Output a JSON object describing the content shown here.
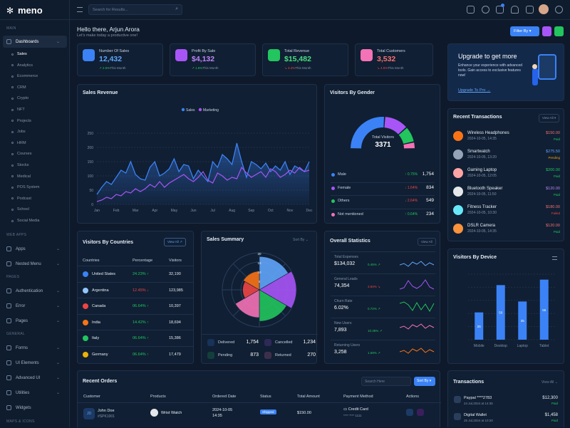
{
  "app": {
    "name": "meno"
  },
  "header": {
    "search_placeholder": "Search for Results..."
  },
  "sidebar": {
    "sec_main": "MAIN",
    "sec_webapps": "WEB APPS",
    "sec_pages": "PAGES",
    "sec_general": "GENERAL",
    "sec_maps": "MAPS & ICONS",
    "dashboards": "Dashboards",
    "subs": [
      "Sales",
      "Analytics",
      "Ecommerce",
      "CRM",
      "Crypto",
      "NFT",
      "Projects",
      "Jobs",
      "HRM",
      "Courses",
      "Stocks",
      "Medical",
      "POS System",
      "Podcast",
      "School",
      "Social Media"
    ],
    "apps": "Apps",
    "nested": "Nested Menu",
    "auth": "Authentication",
    "error": "Error",
    "pages": "Pages",
    "forms": "Forms",
    "ui": "UI Elements",
    "advui": "Advanced UI",
    "utilities": "Utilities",
    "widgets": "Widgets"
  },
  "greeting": {
    "title": "Hello there, Arjun Arora",
    "subtitle": "Let's make today a productive one!",
    "filter": "Filter By"
  },
  "stats": [
    {
      "label": "Number Of Sales",
      "value": "12,432",
      "change": "2.5%",
      "suffix": "This Month",
      "color": "#3b82f6",
      "val_color": "#60a5fa",
      "up": true
    },
    {
      "label": "Profit By Sale",
      "value": "$4,132",
      "change": "1.5%",
      "suffix": "This Month",
      "color": "#a855f7",
      "val_color": "#c084fc",
      "up": true
    },
    {
      "label": "Total Revenue",
      "value": "$15,482",
      "change": "3.4%",
      "suffix": "This Month",
      "color": "#22c55e",
      "val_color": "#4ade80",
      "up": false
    },
    {
      "label": "Total Customers",
      "value": "3,532",
      "change": "4.5%",
      "suffix": "This Month",
      "color": "#f472b6",
      "val_color": "#f87171",
      "up": false
    }
  ],
  "upgrade": {
    "title": "Upgrade to get more",
    "text": "Enhance your experience with advanced tools. Gain access to exclusive features now!",
    "link": "Upgrade To Pro →"
  },
  "sales_revenue": {
    "title": "Sales Revenue",
    "legend": [
      "Sales",
      "Marketing"
    ],
    "yticks": [
      "0",
      "50",
      "100",
      "150",
      "200",
      "250"
    ],
    "months": [
      "Jan",
      "Feb",
      "Mar",
      "Apr",
      "May",
      "Jun",
      "Jul",
      "Aug",
      "Sep",
      "Oct",
      "Nov",
      "Dec"
    ]
  },
  "chart_data": {
    "type": "line",
    "x": [
      1,
      2,
      3,
      4,
      5,
      6,
      7,
      8,
      9,
      10,
      11,
      12,
      13,
      14,
      15,
      16,
      17,
      18,
      19,
      20,
      21,
      22,
      23,
      24,
      25,
      26,
      27,
      28,
      29,
      30,
      31,
      32,
      33,
      34,
      35,
      36,
      37,
      38,
      39,
      40,
      41,
      42,
      43,
      44,
      45
    ],
    "series": [
      {
        "name": "Sales",
        "values": [
          35,
          60,
          80,
          70,
          95,
          120,
          110,
          150,
          105,
          90,
          85,
          130,
          150,
          100,
          110,
          125,
          160,
          115,
          140,
          135,
          90,
          120,
          100,
          80,
          150,
          130,
          175,
          160,
          140,
          215,
          150,
          95,
          150,
          140,
          125,
          145,
          115,
          135,
          120,
          150,
          105,
          135,
          125,
          115,
          150
        ]
      },
      {
        "name": "Marketing",
        "values": [
          10,
          15,
          25,
          20,
          35,
          30,
          45,
          40,
          55,
          45,
          55,
          70,
          60,
          80,
          60,
          75,
          85,
          95,
          105,
          90,
          80,
          95,
          115,
          85,
          75,
          110,
          100,
          85,
          95,
          90,
          130,
          110,
          95,
          105,
          115,
          95,
          125,
          115,
          95,
          105,
          120,
          110,
          130,
          115,
          120
        ]
      }
    ],
    "ylim": [
      0,
      250
    ],
    "grid": true
  },
  "gender": {
    "title": "Visitors By Gender",
    "total_label": "Total Visitors",
    "total": "3371",
    "rows": [
      {
        "name": "Male",
        "pct": "0.75%",
        "val": "1,754",
        "up": true,
        "color": "#3b82f6"
      },
      {
        "name": "Female",
        "pct": "1.64%",
        "val": "834",
        "up": false,
        "color": "#a855f7"
      },
      {
        "name": "Others",
        "pct": "2.64%",
        "val": "549",
        "up": false,
        "color": "#22c55e"
      },
      {
        "name": "Not mentioned",
        "pct": "0.64%",
        "val": "234",
        "up": true,
        "color": "#f472b6"
      }
    ]
  },
  "transactions_recent": {
    "title": "Recent Transactions",
    "viewall": "View All",
    "items": [
      {
        "name": "Wireless Headphones",
        "date": "2024-10-05, 14:35",
        "amount": "$150.00",
        "status": "Paid",
        "amt_color": "#f87171",
        "st_color": "#22c55e"
      },
      {
        "name": "Smartwatch",
        "date": "2024-10-05, 13:20",
        "amount": "$275.50",
        "status": "Pending",
        "amt_color": "#60a5fa",
        "st_color": "#f59e0b"
      },
      {
        "name": "Gaming Laptop",
        "date": "2024-10-05, 12:05",
        "amount": "$200.00",
        "status": "Paid",
        "amt_color": "#22c55e",
        "st_color": "#22c55e"
      },
      {
        "name": "Bluetooth Speaker",
        "date": "2024-10-05, 11:50",
        "amount": "$120.00",
        "status": "Paid",
        "amt_color": "#c084fc",
        "st_color": "#22c55e"
      },
      {
        "name": "Fitness Tracker",
        "date": "2024-10-05, 10:30",
        "amount": "$180.00",
        "status": "Failed",
        "amt_color": "#f87171",
        "st_color": "#ef4444"
      },
      {
        "name": "DSLR Camera",
        "date": "2024-10-05, 14:35",
        "amount": "$120.00",
        "status": "Paid",
        "amt_color": "#f87171",
        "st_color": "#22c55e"
      }
    ]
  },
  "countries": {
    "title": "Visitors By Countries",
    "viewall": "View All",
    "headers": [
      "Countries",
      "Percentage",
      "Visitors"
    ],
    "rows": [
      {
        "name": "United States",
        "pct": "24.23%",
        "val": "32,190",
        "up": true,
        "flag": "#3b82f6"
      },
      {
        "name": "Argentina",
        "pct": "12.45%",
        "val": "123,985",
        "up": false,
        "flag": "#93c5fd"
      },
      {
        "name": "Canada",
        "pct": "06.64%",
        "val": "10,397",
        "up": true,
        "flag": "#ef4444"
      },
      {
        "name": "India",
        "pct": "14.42%",
        "val": "18,694",
        "up": true,
        "flag": "#f97316"
      },
      {
        "name": "Italy",
        "pct": "06.64%",
        "val": "15,386",
        "up": true,
        "flag": "#22c55e"
      },
      {
        "name": "Germany",
        "pct": "06.64%",
        "val": "17,479",
        "up": true,
        "flag": "#eab308"
      }
    ]
  },
  "summary": {
    "title": "Sales Summary",
    "sortby": "Sort By",
    "rticks": [
      "20",
      "15",
      "10",
      "5"
    ],
    "items": [
      {
        "name": "Delivered",
        "val": "1,754",
        "color": "#3b82f6"
      },
      {
        "name": "Cancelled",
        "val": "1,234",
        "color": "#a855f7"
      },
      {
        "name": "Pending",
        "val": "873",
        "color": "#22c55e"
      },
      {
        "name": "Returned",
        "val": "270",
        "color": "#f472b6"
      }
    ]
  },
  "overall": {
    "title": "Overall Statistics",
    "viewall": "View All",
    "items": [
      {
        "label": "Total Expenses",
        "value": "$134,032",
        "pct": "0.45%",
        "up": true,
        "color": "#60a5fa"
      },
      {
        "label": "General Leads",
        "value": "74,354",
        "pct": "3.84%",
        "up": false,
        "color": "#a855f7"
      },
      {
        "label": "Churn Rate",
        "value": "6.02%",
        "pct": "0.72%",
        "up": true,
        "color": "#22c55e"
      },
      {
        "label": "New Users",
        "value": "7,893",
        "pct": "10.35%",
        "up": true,
        "color": "#f472b6"
      },
      {
        "label": "Returning Users",
        "value": "3,258",
        "pct": "1.69%",
        "up": true,
        "color": "#f97316"
      }
    ]
  },
  "device": {
    "title": "Visitors By Device",
    "categories": [
      "Mobile",
      "Desktop",
      "Laptop",
      "Tablet"
    ],
    "values": [
      25,
      50,
      35,
      55
    ],
    "labels": [
      "25",
      "50",
      "35",
      "55"
    ]
  },
  "orders": {
    "title": "Recent Orders",
    "search": "Search Here",
    "sort": "Sort By",
    "headers": [
      "Customer",
      "Products",
      "Ordered Date",
      "Status",
      "Total Amount",
      "Payment Method",
      "Actions"
    ],
    "row": {
      "initials": "JD",
      "name": "John Doe",
      "id": "#SPK1001",
      "product": "Wrist Watch",
      "date": "2024-10-05",
      "time": "14:35",
      "status": "Shipped",
      "amount": "$150.00",
      "method": "Credit Card",
      "card": "**** **** 1111"
    }
  },
  "transactions": {
    "title": "Transactions",
    "viewall": "View All",
    "items": [
      {
        "name": "Paypal ****2783",
        "date": "24 Jul,2024 at 14:35",
        "amount": "$12,300",
        "status": "Paid"
      },
      {
        "name": "Digital Wallet",
        "date": "25 Jul,2024 at 10:20",
        "amount": "$1,458",
        "status": "Paid"
      }
    ]
  }
}
